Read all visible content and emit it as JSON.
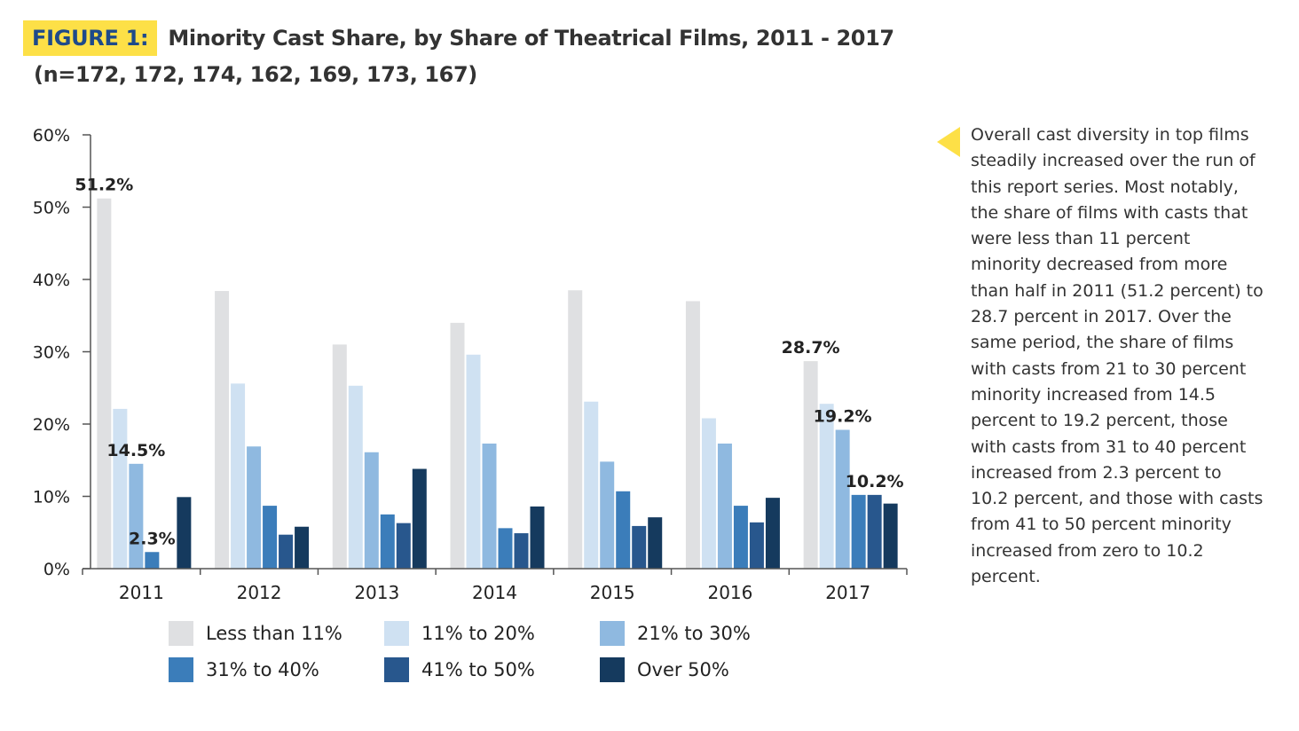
{
  "figure": {
    "tag": "FIGURE 1:",
    "title": "Minority Cast Share, by Share of Theatrical Films, 2011 - 2017",
    "subtitle": "(n=172, 172, 174, 162, 169, 173, 167)"
  },
  "note": {
    "text": "Overall cast diversity in top films steadily increased over the run of this report series. Most notably, the share of films with casts that were less than 11 percent minority decreased from more than half in 2011 (51.2 percent) to 28.7 percent in 2017. Over the same period, the share of films with casts from 21 to 30 percent minority increased from 14.5 percent to 19.2 percent, those with casts from 31 to 40 percent increased from 2.3 percent to 10.2 percent, and those with casts from 41 to 50 percent minority increased from zero to 10.2 percent."
  },
  "colors": {
    "accent": "#fde047",
    "title_tag_text": "#1e4a8a",
    "axis": "#555555"
  },
  "chart_data": {
    "type": "bar",
    "categories": [
      "2011",
      "2012",
      "2013",
      "2014",
      "2015",
      "2016",
      "2017"
    ],
    "ylim": [
      0,
      60
    ],
    "y_ticks": [
      "0%",
      "10%",
      "20%",
      "30%",
      "40%",
      "50%",
      "60%"
    ],
    "grid": false,
    "legend_position": "bottom",
    "series": [
      {
        "name": "Less than 11%",
        "color": "#dfe0e2",
        "values": [
          51.2,
          38.4,
          31.0,
          34.0,
          38.5,
          37.0,
          28.7
        ]
      },
      {
        "name": "11% to 20%",
        "color": "#cfe1f2",
        "values": [
          22.1,
          25.6,
          25.3,
          29.6,
          23.1,
          20.8,
          22.8
        ]
      },
      {
        "name": "21% to 30%",
        "color": "#8fb9e0",
        "values": [
          14.5,
          16.9,
          16.1,
          17.3,
          14.8,
          17.3,
          19.2
        ]
      },
      {
        "name": "31% to 40%",
        "color": "#3b7dba",
        "values": [
          2.3,
          8.7,
          7.5,
          5.6,
          10.7,
          8.7,
          10.2
        ]
      },
      {
        "name": "41% to 50%",
        "color": "#28578d",
        "values": [
          0,
          4.7,
          6.3,
          4.9,
          5.9,
          6.4,
          10.2
        ]
      },
      {
        "name": "Over 50%",
        "color": "#153a5e",
        "values": [
          9.9,
          5.8,
          13.8,
          8.6,
          7.1,
          9.8,
          9.0
        ]
      }
    ],
    "annotations": [
      {
        "text": "51.2%",
        "category": "2011",
        "series": "Less than 11%"
      },
      {
        "text": "14.5%",
        "category": "2011",
        "series": "21% to 30%"
      },
      {
        "text": "2.3%",
        "category": "2011",
        "series": "31% to 40%"
      },
      {
        "text": "28.7%",
        "category": "2017",
        "series": "Less than 11%"
      },
      {
        "text": "19.2%",
        "category": "2017",
        "series": "21% to 30%"
      },
      {
        "text": "10.2%",
        "category": "2017",
        "series": "41% to 50%"
      }
    ]
  }
}
